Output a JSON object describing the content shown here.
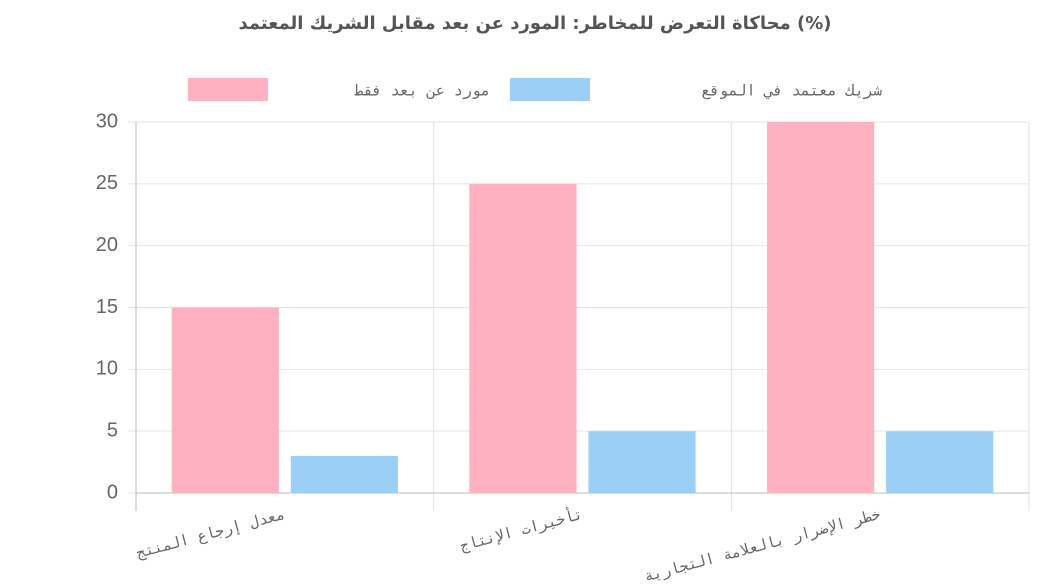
{
  "chart_data": {
    "type": "bar",
    "title": "محاكاة التعرض للمخاطر: المورد عن بعد مقابل الشريك المعتمد (%)",
    "categories": [
      "معدل إرجاع المنتج",
      "تأخيرات الإنتاج",
      "خطر الإضرار بالعلامة التجارية"
    ],
    "series": [
      {
        "name": "مورد عن بعد فقط",
        "color": "#ffb1c1",
        "values": [
          15,
          25,
          30
        ]
      },
      {
        "name": "شريك معتمد في الموقع",
        "color": "#9ad0f5",
        "values": [
          3,
          5,
          5
        ]
      }
    ],
    "ylim": [
      0,
      30
    ],
    "yticks": [
      0,
      5,
      10,
      15,
      20,
      25,
      30
    ],
    "grid": true,
    "legend": "top"
  }
}
